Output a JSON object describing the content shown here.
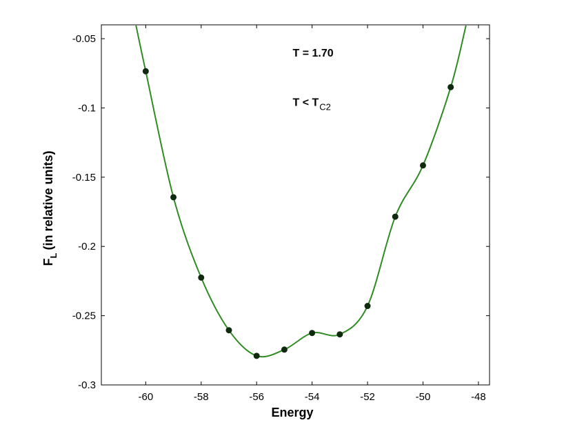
{
  "chart_data": {
    "type": "line",
    "title": "",
    "xlabel": "Energy",
    "ylabel": "F",
    "ylabel_subscript": "L",
    "ylabel_rest": "(in relative units)",
    "xlim": [
      -61.6,
      -47.6
    ],
    "ylim": [
      -0.3,
      -0.04
    ],
    "xticks": [
      -60,
      -58,
      -56,
      -54,
      -52,
      -50,
      -48
    ],
    "yticks": [
      -0.3,
      -0.25,
      -0.2,
      -0.15,
      -0.1,
      -0.05
    ],
    "xtick_labels": [
      "-60",
      "-58",
      "-56",
      "-54",
      "-52",
      "-50",
      "-48"
    ],
    "ytick_labels": [
      "-0.3",
      "-0.25",
      "-0.2",
      "-0.15",
      "-0.1",
      "-0.05"
    ],
    "grid": false,
    "legend": "none",
    "series": [
      {
        "marker": "circle",
        "line_color": "#2e8b22",
        "marker_color": "#0f2a0f",
        "x": [
          -60,
          -59,
          -58,
          -57,
          -56,
          -55,
          -54,
          -53,
          -52,
          -51,
          -50,
          -49
        ],
        "y": [
          -0.0735,
          -0.1645,
          -0.2225,
          -0.2605,
          -0.279,
          -0.2745,
          -0.2625,
          -0.2635,
          -0.243,
          -0.1785,
          -0.1415,
          -0.085
        ]
      }
    ],
    "curve_extension": {
      "left": {
        "x": -60.35,
        "y": -0.0405
      },
      "right": {
        "x": -48.45,
        "y": -0.0405
      }
    },
    "annotations": [
      {
        "text": "T = 1.70",
        "x": -54.7,
        "y": -0.063
      },
      {
        "text": "T < T",
        "subscript": "C2",
        "x": -54.7,
        "y": -0.0985
      }
    ]
  }
}
